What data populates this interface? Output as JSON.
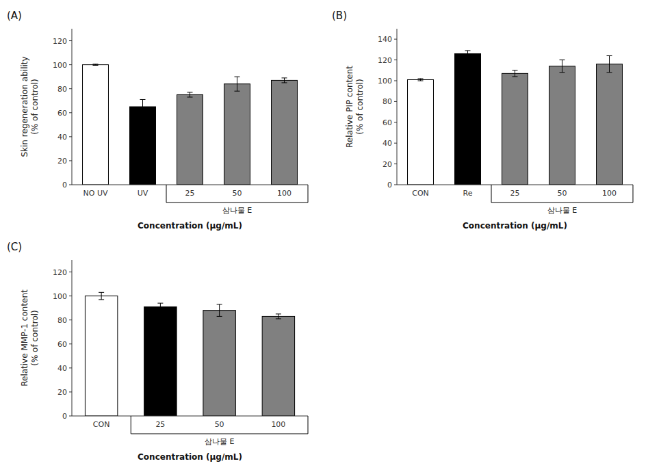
{
  "chart_data": [
    {
      "type": "bar",
      "title": "(A)",
      "categories": [
        "NO UV",
        "UV",
        "25",
        "50",
        "100"
      ],
      "values": [
        100,
        65,
        75,
        84,
        87
      ],
      "errors": [
        0.5,
        6,
        2,
        6,
        2
      ],
      "colors": [
        "white",
        "black",
        "#808080",
        "#808080",
        "#808080"
      ],
      "ylabel": "Skin regeneration ability\n(% of control)",
      "xlabel": "Concentration (μg/mL)",
      "ylim": [
        0,
        130
      ],
      "yticks": [
        0,
        20,
        40,
        60,
        80,
        100,
        120
      ],
      "annotations": [
        {
          "text": "삼나물 E",
          "from": "25",
          "to": "100"
        }
      ],
      "grid": false
    },
    {
      "type": "bar",
      "title": "(B)",
      "categories": [
        "CON",
        "Re",
        "25",
        "50",
        "100"
      ],
      "values": [
        101,
        126,
        107,
        114,
        116
      ],
      "errors": [
        1,
        3,
        3,
        6,
        8
      ],
      "colors": [
        "white",
        "black",
        "#808080",
        "#808080",
        "#808080"
      ],
      "ylabel": "Relative PIP content\n(% of control)",
      "xlabel": "Concentration (μg/mL)",
      "ylim": [
        0,
        150
      ],
      "yticks": [
        0,
        20,
        40,
        60,
        80,
        100,
        120,
        140
      ],
      "annotations": [
        {
          "text": "삼나물 E",
          "from": "25",
          "to": "100"
        }
      ],
      "grid": false
    },
    {
      "type": "bar",
      "title": "(C)",
      "categories": [
        "CON",
        "25",
        "50",
        "100"
      ],
      "values": [
        100,
        91,
        88,
        83
      ],
      "errors": [
        3,
        3,
        5,
        2
      ],
      "colors": [
        "white",
        "black",
        "#808080",
        "#808080"
      ],
      "ylabel": "Relative MMP-1 content\n(% of control)",
      "xlabel": "Concentration (μg/mL)",
      "ylim": [
        0,
        130
      ],
      "yticks": [
        0,
        20,
        40,
        60,
        80,
        100,
        120
      ],
      "annotations": [
        {
          "text": "삼나물 E",
          "from": "25",
          "to": "100"
        }
      ],
      "grid": false
    }
  ]
}
